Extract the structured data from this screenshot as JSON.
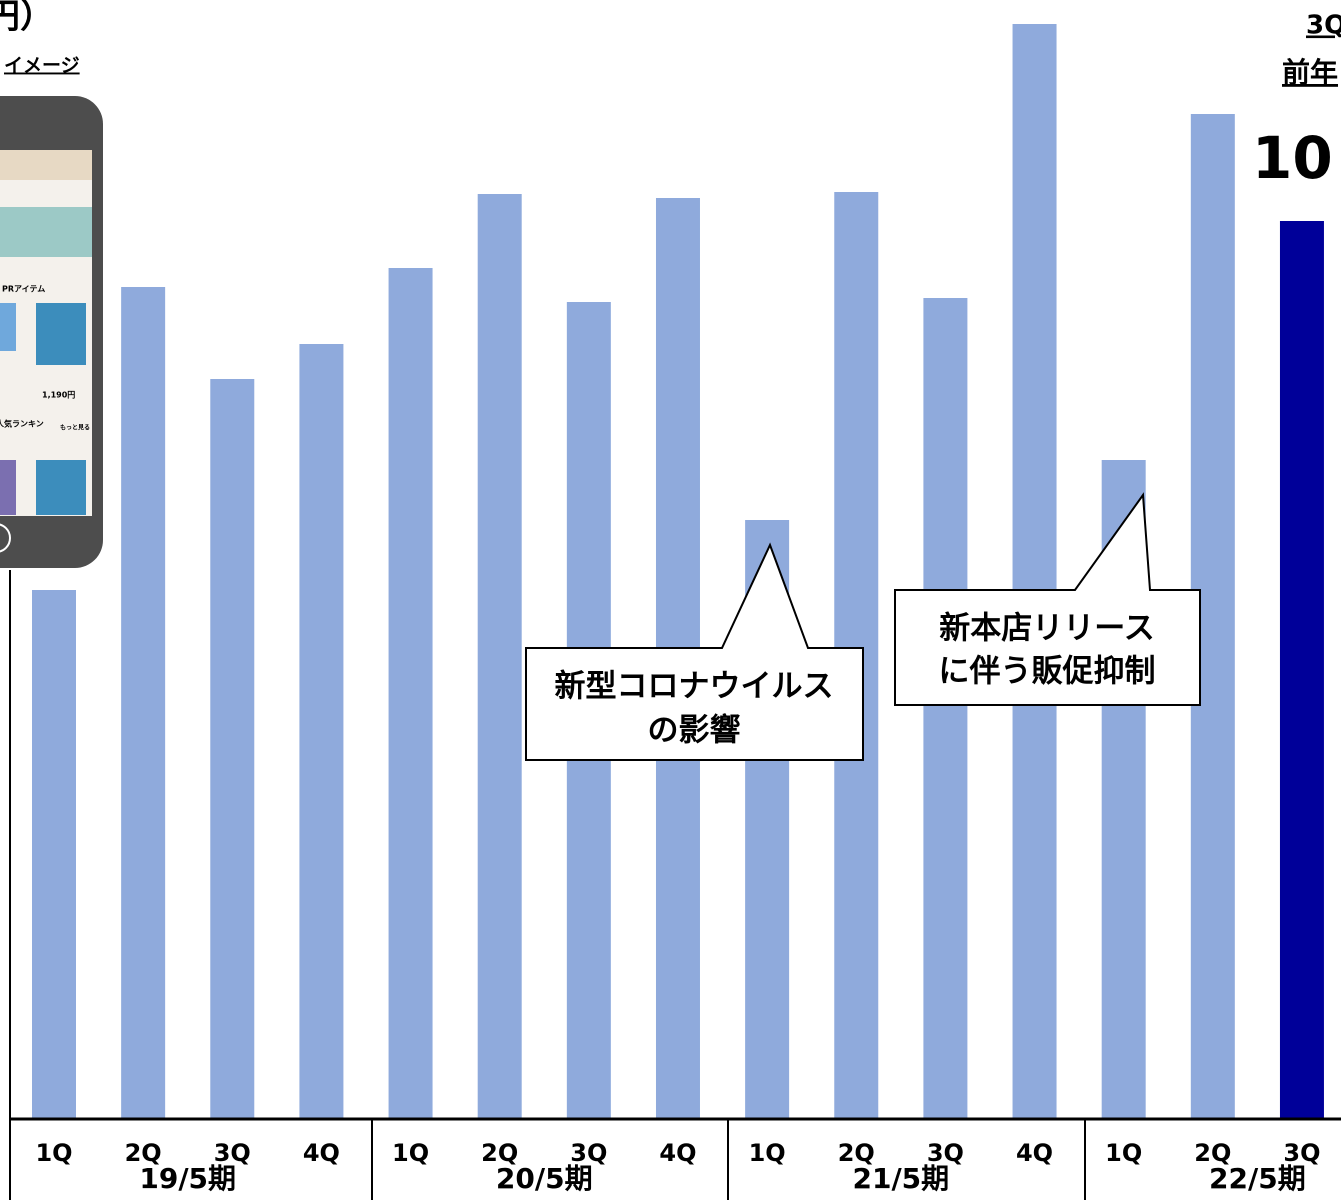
{
  "chart_data": {
    "type": "bar",
    "groups": [
      {
        "name": "19/5期",
        "categories": [
          "1Q",
          "2Q",
          "3Q",
          "4Q"
        ],
        "values": [
          528,
          831,
          739,
          774
        ],
        "colors": [
          "#8faadc",
          "#8faadc",
          "#8faadc",
          "#8faadc"
        ]
      },
      {
        "name": "20/5期",
        "categories": [
          "1Q",
          "2Q",
          "3Q",
          "4Q"
        ],
        "values": [
          850,
          924,
          816,
          920
        ],
        "colors": [
          "#8faadc",
          "#8faadc",
          "#8faadc",
          "#8faadc"
        ]
      },
      {
        "name": "21/5期",
        "categories": [
          "1Q",
          "2Q",
          "3Q",
          "4Q"
        ],
        "values": [
          598,
          926,
          820,
          1094
        ],
        "colors": [
          "#8faadc",
          "#8faadc",
          "#8faadc",
          "#8faadc"
        ]
      },
      {
        "name": "22/5期",
        "categories": [
          "1Q",
          "2Q",
          "3Q"
        ],
        "values": [
          658,
          1004,
          897
        ],
        "colors": [
          "#8faadc",
          "#8faadc",
          "#000099"
        ]
      }
    ],
    "ylim": [
      0,
      1100
    ],
    "annotations": [
      {
        "lines": [
          "新型コロナウイルス",
          "の影響"
        ]
      },
      {
        "lines": [
          "新本店リリース",
          "に伴う販促抑制"
        ]
      }
    ],
    "title_fragment": "円）",
    "image_caption": "イメージ",
    "highlight": {
      "label": "3Q",
      "sublabel": "前年",
      "value_text": "10"
    },
    "phone": {
      "texts": [
        "PRアイテム",
        "1,190円",
        "人気ランキン",
        "もっと見る"
      ]
    }
  }
}
